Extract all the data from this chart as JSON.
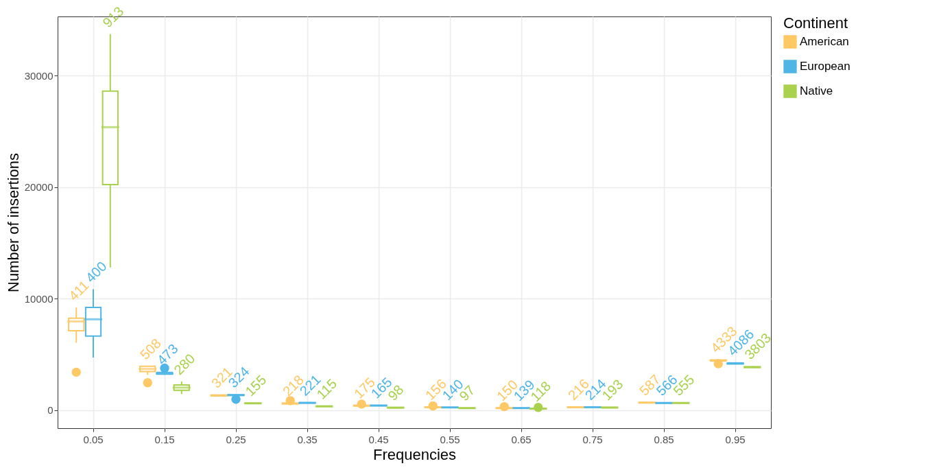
{
  "chart_data": {
    "type": "box",
    "xlabel": "Frequencies",
    "ylabel": "Number of insertions",
    "legend_title": "Continent",
    "legend": "right",
    "grid": true,
    "categories": [
      "0.05",
      "0.15",
      "0.25",
      "0.35",
      "0.45",
      "0.55",
      "0.65",
      "0.75",
      "0.85",
      "0.95"
    ],
    "ylim": [
      -1600,
      35300
    ],
    "yticks": [
      0,
      10000,
      20000,
      30000
    ],
    "series": [
      {
        "name": "American",
        "color": "#fec864",
        "value_labels": [
          "411",
          "508",
          "321",
          "218",
          "175",
          "156",
          "150",
          "216",
          "587",
          "4333"
        ],
        "boxes": [
          {
            "low": 6060,
            "q1": 7130,
            "median": 7970,
            "q3": 8260,
            "high": 9220,
            "outliers": [
              3420
            ]
          },
          {
            "low": 3180,
            "q1": 3470,
            "median": 3710,
            "q3": 3950,
            "high": 3950,
            "outliers": [
              2470
            ]
          },
          {
            "low": 1250,
            "q1": 1300,
            "median": 1330,
            "q3": 1370,
            "high": 1400
          },
          {
            "low": 560,
            "q1": 590,
            "median": 610,
            "q3": 640,
            "high": 670,
            "outliers": [
              870
            ]
          },
          {
            "low": 380,
            "q1": 400,
            "median": 420,
            "q3": 440,
            "high": 460,
            "outliers": [
              560
            ]
          },
          {
            "low": 240,
            "q1": 260,
            "median": 280,
            "q3": 300,
            "high": 320,
            "outliers": [
              400
            ]
          },
          {
            "low": 160,
            "q1": 180,
            "median": 200,
            "q3": 220,
            "high": 240,
            "outliers": [
              330
            ]
          },
          {
            "low": 240,
            "q1": 260,
            "median": 280,
            "q3": 300,
            "high": 320
          },
          {
            "low": 650,
            "q1": 670,
            "median": 690,
            "q3": 710,
            "high": 730
          },
          {
            "low": 4380,
            "q1": 4430,
            "median": 4470,
            "q3": 4510,
            "high": 4560,
            "outliers": [
              4180
            ]
          }
        ]
      },
      {
        "name": "European",
        "color": "#4fb5e6",
        "value_labels": [
          "400",
          "473",
          "324",
          "221",
          "165",
          "140",
          "139",
          "214",
          "566",
          "4086"
        ],
        "boxes": [
          {
            "low": 4740,
            "q1": 6660,
            "median": 8160,
            "q3": 9220,
            "high": 10850
          },
          {
            "low": 3180,
            "q1": 3250,
            "median": 3300,
            "q3": 3400,
            "high": 3470,
            "outliers": [
              3780
            ]
          },
          {
            "low": 1300,
            "q1": 1330,
            "median": 1370,
            "q3": 1400,
            "high": 1430,
            "outliers": [
              1000
            ]
          },
          {
            "low": 630,
            "q1": 650,
            "median": 670,
            "q3": 690,
            "high": 710
          },
          {
            "low": 390,
            "q1": 410,
            "median": 430,
            "q3": 450,
            "high": 470
          },
          {
            "low": 230,
            "q1": 250,
            "median": 260,
            "q3": 280,
            "high": 300
          },
          {
            "low": 170,
            "q1": 190,
            "median": 200,
            "q3": 220,
            "high": 240
          },
          {
            "low": 250,
            "q1": 270,
            "median": 280,
            "q3": 300,
            "high": 320
          },
          {
            "low": 620,
            "q1": 640,
            "median": 660,
            "q3": 680,
            "high": 700
          },
          {
            "low": 4120,
            "q1": 4160,
            "median": 4200,
            "q3": 4250,
            "high": 4290
          }
        ]
      },
      {
        "name": "Native",
        "color": "#a9d14d",
        "value_labels": [
          "913",
          "280",
          "155",
          "115",
          "98",
          "97",
          "118",
          "193",
          "555",
          "3803"
        ],
        "boxes": [
          {
            "low": 12810,
            "q1": 20230,
            "median": 25380,
            "q3": 28610,
            "high": 33710
          },
          {
            "low": 1460,
            "q1": 1800,
            "median": 2040,
            "q3": 2270,
            "high": 2590
          },
          {
            "low": 590,
            "q1": 610,
            "median": 630,
            "q3": 650,
            "high": 670
          },
          {
            "low": 320,
            "q1": 340,
            "median": 360,
            "q3": 380,
            "high": 400
          },
          {
            "low": 200,
            "q1": 220,
            "median": 240,
            "q3": 260,
            "high": 280
          },
          {
            "low": 160,
            "q1": 180,
            "median": 200,
            "q3": 220,
            "high": 240
          },
          {
            "low": 110,
            "q1": 130,
            "median": 150,
            "q3": 170,
            "high": 190,
            "outliers": [
              260
            ]
          },
          {
            "low": 210,
            "q1": 230,
            "median": 250,
            "q3": 270,
            "high": 290
          },
          {
            "low": 620,
            "q1": 640,
            "median": 660,
            "q3": 680,
            "high": 700
          },
          {
            "low": 3800,
            "q1": 3840,
            "median": 3870,
            "q3": 3900,
            "high": 3960
          }
        ]
      }
    ]
  }
}
